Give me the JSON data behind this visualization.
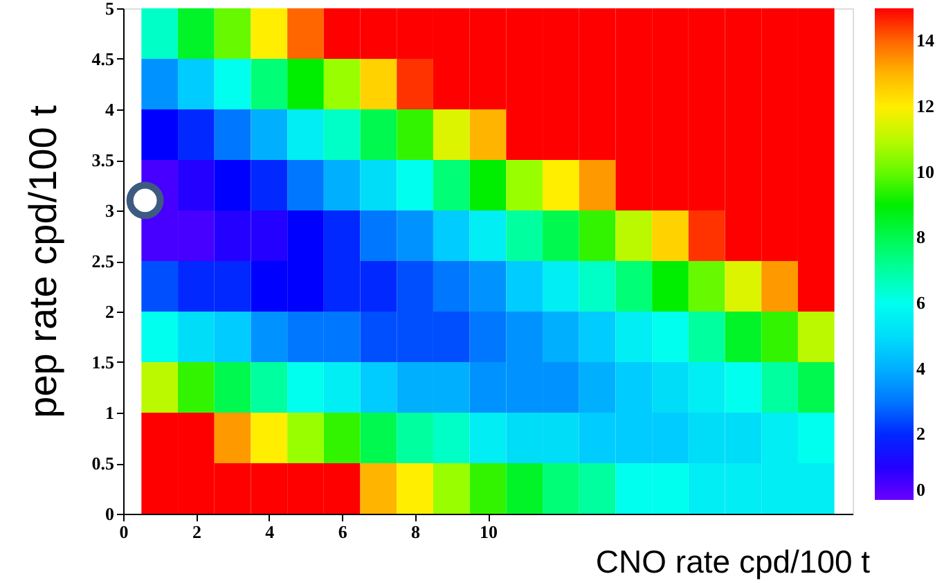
{
  "chart_data": {
    "type": "heatmap",
    "xlabel": "CNO rate cpd/100 t",
    "ylabel": "pep rate cpd/100 t",
    "x": [
      1,
      2,
      3,
      4,
      5,
      6,
      7,
      8,
      9,
      10,
      11,
      12,
      13,
      14,
      15,
      16,
      17,
      18,
      19
    ],
    "y": [
      4.75,
      4.25,
      3.75,
      3.25,
      2.75,
      2.25,
      1.75,
      1.25,
      0.75,
      0.25
    ],
    "cells": [
      [
        6.5,
        8.5,
        10,
        12,
        14,
        15,
        15,
        15,
        15,
        15,
        15,
        15,
        15,
        15,
        15,
        15,
        15,
        15,
        15
      ],
      [
        3.5,
        4.5,
        6,
        7.5,
        9,
        10.5,
        12.5,
        14.5,
        15,
        15,
        15,
        15,
        15,
        15,
        15,
        15,
        15,
        15,
        15
      ],
      [
        1.5,
        2,
        3,
        4,
        5.5,
        6.5,
        8,
        9.5,
        11.5,
        13,
        15,
        15,
        15,
        15,
        15,
        15,
        15,
        15,
        15
      ],
      [
        0.5,
        1,
        1.5,
        2,
        3,
        4,
        5,
        6,
        7.5,
        9,
        10.5,
        12,
        13.5,
        15,
        15,
        15,
        15,
        15,
        15
      ],
      [
        0.5,
        0.5,
        1,
        1,
        1.5,
        2,
        3,
        3.5,
        4.5,
        5.5,
        7,
        8,
        9.5,
        11,
        12.5,
        14.5,
        15,
        15,
        15
      ],
      [
        2.5,
        2,
        2,
        1.5,
        1.5,
        2,
        2,
        2.5,
        3,
        3.5,
        4.5,
        5.5,
        6.5,
        7.5,
        9,
        10,
        11.5,
        13.5,
        15
      ],
      [
        6,
        5,
        4.5,
        3.5,
        3,
        3,
        2.5,
        2.5,
        2.5,
        3,
        3.5,
        4,
        4.5,
        5.5,
        6,
        7,
        8.5,
        9.5,
        11
      ],
      [
        11,
        9.5,
        8,
        7,
        6,
        5.5,
        4.5,
        4,
        4,
        3.5,
        3.5,
        3.5,
        4,
        4.5,
        5,
        5.5,
        6,
        7,
        8
      ],
      [
        15,
        15,
        13.5,
        12,
        10.5,
        9.5,
        8,
        7,
        6.5,
        5.5,
        5,
        5,
        4.5,
        4.5,
        4.5,
        5,
        5,
        5.5,
        6
      ],
      [
        15,
        15,
        15,
        15,
        15,
        15,
        13,
        12,
        10.5,
        9.5,
        8.5,
        7.5,
        7,
        6,
        6,
        5.5,
        5.5,
        5.5,
        5.5
      ]
    ],
    "colors": [
      "#6a00ff",
      "#0000ff",
      "#0077ff",
      "#00ccff",
      "#00ffee",
      "#00ff77",
      "#00ee00",
      "#99ff00",
      "#ffee00",
      "#ff9900",
      "#ff0000"
    ],
    "clim": [
      0,
      15
    ],
    "cticks": [
      0,
      2,
      4,
      6,
      8,
      10,
      12,
      14
    ],
    "xlim": [
      0,
      20
    ],
    "xticks": [
      0,
      2,
      4,
      6,
      8,
      10
    ],
    "ylim": [
      0,
      5
    ],
    "yticks": [
      0,
      {
        "value": 0.5,
        "label": "0.5"
      },
      1,
      {
        "value": 1.5,
        "label": "1.5"
      },
      2,
      {
        "value": 2.5,
        "label": "2.5"
      },
      3,
      {
        "value": 3.5,
        "label": "3.5"
      },
      4,
      {
        "value": 4.5,
        "label": "4.5"
      },
      5
    ],
    "series": [
      {
        "type": "scatter",
        "color": "#3d5a80",
        "x": [
          0.6
        ],
        "values": [
          3.1
        ]
      }
    ],
    "marker": "circle",
    "grid": false
  }
}
